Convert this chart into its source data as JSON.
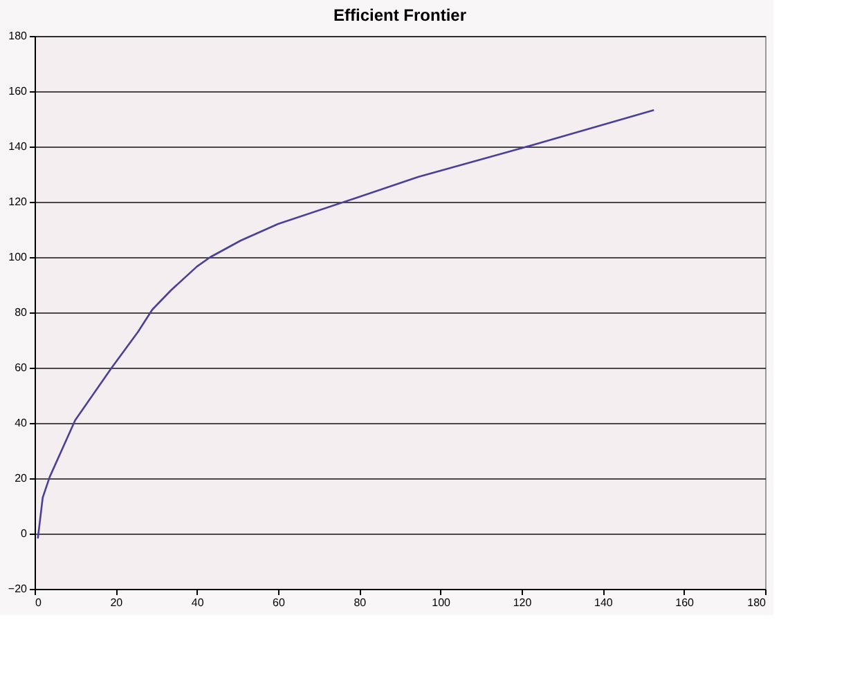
{
  "chart_data": {
    "type": "line",
    "title": "Efficient Frontier",
    "x": [
      0.8,
      2,
      3.7,
      10,
      19,
      25.5,
      29,
      33.6,
      40,
      43.3,
      50.8,
      60,
      78.4,
      94.5,
      120.2,
      152.6
    ],
    "series": [
      {
        "color": "#4b3f9a",
        "values": [
          -1.8,
          13,
          20.4,
          41,
          60,
          73,
          81,
          88,
          96.6,
          100,
          106,
          112,
          121,
          129,
          139.5,
          153.2
        ]
      }
    ],
    "xlim": [
      0,
      180
    ],
    "xticks": [
      0,
      20,
      40,
      60,
      80,
      100,
      120,
      140,
      160,
      180
    ],
    "ylim": [
      -20,
      180
    ],
    "yticks": [
      -20,
      0,
      20,
      40,
      60,
      80,
      100,
      120,
      140,
      160,
      180
    ],
    "grid": "y",
    "marker": "none",
    "line_style": "solid"
  }
}
